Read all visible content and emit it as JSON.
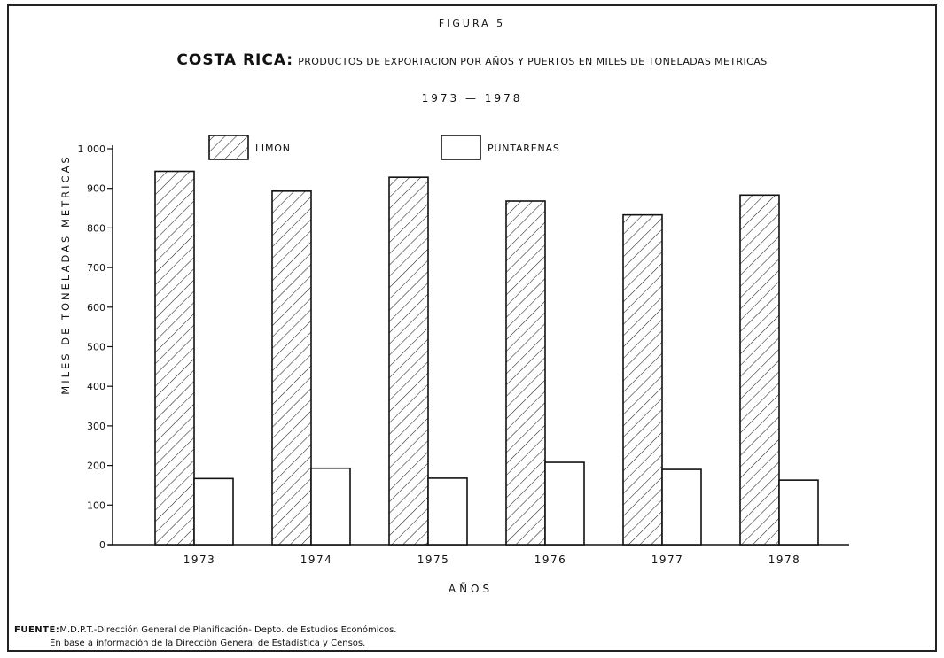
{
  "figure_label": "FIGURA 5",
  "title_main": "COSTA RICA:",
  "title_rest": "PRODUCTOS DE EXPORTACION POR AÑOS Y PUERTOS EN MILES DE TONELADAS METRICAS",
  "years_range": "1973 — 1978",
  "source_label": "FUENTE:",
  "source_line1": "M.D.P.T.-Dirección General de Planificación- Depto. de Estudios Económicos.",
  "source_line2": "En base a información de la Dirección General de Estadística y Censos.",
  "colors": {
    "ink": "#111111",
    "background": "#ffffff"
  },
  "chart_data": {
    "type": "bar",
    "title": "COSTA RICA: PRODUCTOS DE EXPORTACION POR AÑOS Y PUERTOS EN MILES DE TONELADAS METRICAS",
    "subtitle": "1973 — 1978",
    "xlabel": "AÑOS",
    "ylabel": "MILES DE TONELADAS METRICAS",
    "categories": [
      "1973",
      "1974",
      "1975",
      "1976",
      "1977",
      "1978"
    ],
    "series": [
      {
        "name": "LIMON",
        "pattern": "hatched",
        "values": [
          943,
          893,
          928,
          868,
          833,
          883
        ]
      },
      {
        "name": "PUNTARENAS",
        "pattern": "white",
        "values": [
          167,
          193,
          168,
          208,
          190,
          163
        ]
      }
    ],
    "ylim": [
      0,
      1000
    ],
    "yticks": [
      0,
      100,
      200,
      300,
      400,
      500,
      600,
      700,
      800,
      900,
      1000
    ],
    "ytick_labels": [
      "0",
      "100",
      "200",
      "300",
      "400",
      "500",
      "600",
      "700",
      "800",
      "900",
      "1 000"
    ],
    "grid": false,
    "legend_position": "top"
  }
}
